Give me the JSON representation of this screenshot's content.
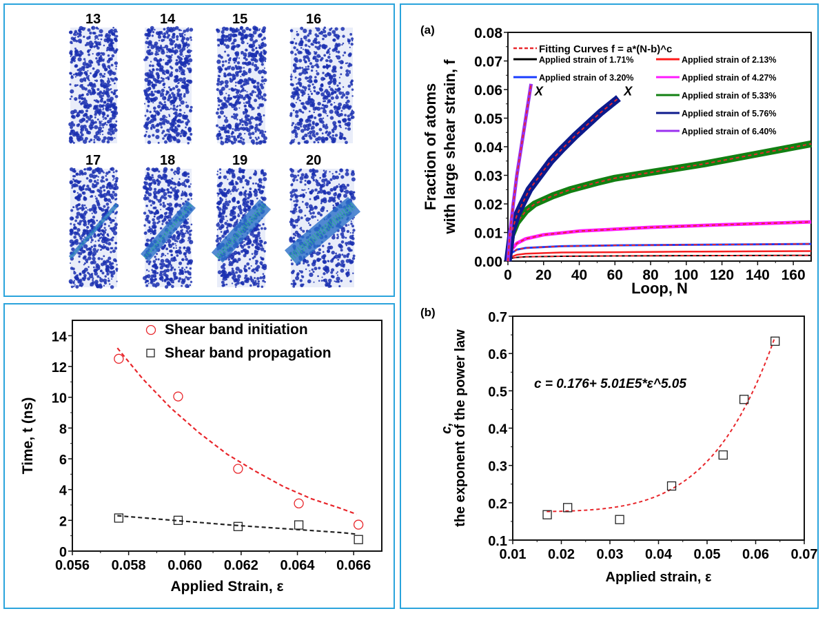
{
  "snapshots": {
    "labels": [
      "13",
      "14",
      "15",
      "16",
      "17",
      "18",
      "19",
      "20"
    ],
    "atom_color": "#1a2fb0"
  },
  "chart_data": [
    {
      "id": "a",
      "panel_label": "(a)",
      "type": "line",
      "xlabel": "Loop, N",
      "ylabel_line1": "Fraction of atoms",
      "ylabel_line2": "with large shear strain, f",
      "xlim": [
        0,
        170
      ],
      "ylim": [
        0,
        0.08
      ],
      "xticks": [
        "0",
        "20",
        "40",
        "60",
        "80",
        "100",
        "120",
        "140",
        "160"
      ],
      "yticks": [
        "0.00",
        "0.01",
        "0.02",
        "0.03",
        "0.04",
        "0.05",
        "0.06",
        "0.07",
        "0.08"
      ],
      "fit_legend": "Fitting Curves  f = a*(N-b)^c",
      "fit_color": "#e8262b",
      "failure_marker": "X",
      "legend_position": "top-right",
      "series": [
        {
          "name": "Applied strain of 1.71%",
          "color": "#000000",
          "N": [
            0,
            2,
            5,
            10,
            30,
            60,
            100,
            170
          ],
          "f": [
            0,
            0.001,
            0.0013,
            0.0015,
            0.0017,
            0.0018,
            0.0019,
            0.002
          ]
        },
        {
          "name": "Applied strain of 2.13%",
          "color": "#ff1a1a",
          "N": [
            0,
            2,
            5,
            10,
            30,
            60,
            100,
            170
          ],
          "f": [
            0,
            0.0015,
            0.0022,
            0.0026,
            0.003,
            0.0031,
            0.0033,
            0.0035
          ]
        },
        {
          "name": "Applied strain of 3.20%",
          "color": "#1a3cff",
          "N": [
            0,
            2,
            5,
            10,
            30,
            60,
            100,
            170
          ],
          "f": [
            0,
            0.0028,
            0.004,
            0.0046,
            0.0052,
            0.0055,
            0.0057,
            0.006
          ]
        },
        {
          "name": "Applied strain of 4.27%",
          "color": "#ff1aff",
          "N": [
            0,
            2,
            5,
            10,
            20,
            40,
            80,
            120,
            170
          ],
          "f": [
            0,
            0.004,
            0.0062,
            0.0078,
            0.0092,
            0.0105,
            0.0118,
            0.0127,
            0.0137
          ]
        },
        {
          "name": "Applied strain of 5.33%",
          "color": "#128012",
          "N": [
            0,
            2,
            5,
            10,
            15,
            25,
            35,
            50,
            60,
            80,
            110,
            140,
            170
          ],
          "f": [
            0,
            0.009,
            0.0135,
            0.0175,
            0.02,
            0.0228,
            0.025,
            0.0275,
            0.029,
            0.031,
            0.034,
            0.0375,
            0.041
          ]
        },
        {
          "name": "Applied strain of 5.76%",
          "color": "#0c1a8c",
          "N": [
            0,
            2,
            5,
            8,
            12,
            18,
            24,
            30,
            38,
            45,
            52,
            62
          ],
          "f": [
            0,
            0.01,
            0.016,
            0.02,
            0.025,
            0.03,
            0.035,
            0.039,
            0.044,
            0.048,
            0.052,
            0.057
          ]
        },
        {
          "name": "Applied strain of 6.40%",
          "color": "#9a30ef",
          "N": [
            0,
            1,
            3,
            5,
            7,
            9,
            11,
            13
          ],
          "f": [
            0,
            0.009,
            0.02,
            0.03,
            0.038,
            0.046,
            0.054,
            0.062
          ]
        }
      ]
    },
    {
      "id": "b",
      "panel_label": "(b)",
      "type": "scatter",
      "xlabel": "Applied strain, ε",
      "ylabel_line1": "c,",
      "ylabel_line2": "the exponent of the power law",
      "xlim": [
        0.01,
        0.07
      ],
      "ylim": [
        0.1,
        0.7
      ],
      "xticks": [
        "0.01",
        "0.02",
        "0.03",
        "0.04",
        "0.05",
        "0.06",
        "0.07"
      ],
      "yticks": [
        "0.1",
        "0.2",
        "0.3",
        "0.4",
        "0.5",
        "0.6",
        "0.7"
      ],
      "annotation": "c = 0.176+ 5.01E5*ε^5.05",
      "fit_color": "#e8262b",
      "points": {
        "x": [
          0.0171,
          0.0213,
          0.032,
          0.0427,
          0.0533,
          0.0576,
          0.064
        ],
        "y": [
          0.168,
          0.187,
          0.155,
          0.245,
          0.328,
          0.477,
          0.633
        ]
      },
      "fit": {
        "c0": 0.176,
        "a": 501000,
        "p": 5.05
      }
    },
    {
      "id": "time",
      "type": "scatter",
      "xlabel": "Applied Strain, ε",
      "ylabel": "Time, t (ns)",
      "xlim": [
        0.056,
        0.067
      ],
      "ylim": [
        0,
        15
      ],
      "xticks": [
        "0.056",
        "0.058",
        "0.060",
        "0.062",
        "0.064",
        "0.066"
      ],
      "yticks": [
        "0",
        "2",
        "4",
        "6",
        "8",
        "10",
        "12",
        "14"
      ],
      "legend_position": "top-right",
      "series": [
        {
          "name": "Shear band initiation",
          "marker": "circle",
          "color": "#e8262b",
          "x": [
            0.05765,
            0.05976,
            0.06189,
            0.06405,
            0.06617
          ],
          "y": [
            12.5,
            10.05,
            5.35,
            3.1,
            1.72
          ],
          "fit": {
            "x": [
              0.0576,
              0.0585,
              0.0595,
              0.0605,
              0.0615,
              0.0625,
              0.0635,
              0.0645,
              0.0655,
              0.0661
            ],
            "y": [
              13.2,
              11.2,
              9.3,
              7.7,
              6.3,
              5.2,
              4.2,
              3.4,
              2.8,
              2.4
            ]
          }
        },
        {
          "name": "Shear band propagation",
          "marker": "square",
          "color": "#222222",
          "x": [
            0.05765,
            0.05976,
            0.06189,
            0.06405,
            0.06617
          ],
          "y": [
            2.15,
            2.0,
            1.6,
            1.7,
            0.75
          ],
          "fit": {
            "x": [
              0.0576,
              0.0596,
              0.0616,
              0.0636,
              0.0656,
              0.0661
            ],
            "y": [
              2.3,
              2.0,
              1.7,
              1.45,
              1.2,
              1.1
            ]
          }
        }
      ]
    }
  ]
}
